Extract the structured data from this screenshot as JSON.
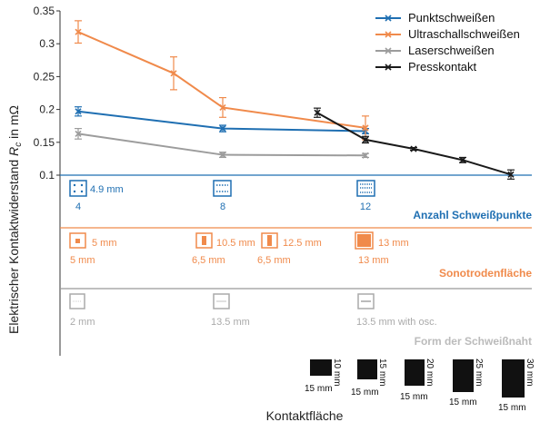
{
  "chart_data": {
    "type": "line",
    "title": "",
    "ylabel_prefix": "Elektrischer Kontaktwiderstand ",
    "ylabel_symbol": "R",
    "ylabel_subscript": "c",
    "ylabel_suffix": " in mΩ",
    "xlabel": "Kontaktfläche",
    "ylim": [
      0.1,
      0.35
    ],
    "yticks": [
      "0.35",
      "0.3",
      "0.25",
      "0.2",
      "0.15",
      "0.1"
    ],
    "grid": false,
    "legend_position": "top-right",
    "series": [
      {
        "name": "Punktschweißen",
        "color": "#1f6fb2",
        "points": [
          {
            "x": 1,
            "y": 0.197,
            "err": 0.007
          },
          {
            "x": 3,
            "y": 0.171,
            "err": 0.005
          },
          {
            "x": 5,
            "y": 0.167,
            "err": 0.004
          }
        ]
      },
      {
        "name": "Ultraschallschweißen",
        "color": "#f08a4b",
        "points": [
          {
            "x": 1,
            "y": 0.318,
            "err": 0.017
          },
          {
            "x": 2,
            "y": 0.255,
            "err": 0.025
          },
          {
            "x": 3,
            "y": 0.203,
            "err": 0.015
          },
          {
            "x": 5,
            "y": 0.172,
            "err": 0.018
          }
        ]
      },
      {
        "name": "Laserschweißen",
        "color": "#9c9c9c",
        "points": [
          {
            "x": 1,
            "y": 0.163,
            "err": 0.008
          },
          {
            "x": 3,
            "y": 0.131,
            "err": 0.004
          },
          {
            "x": 5,
            "y": 0.13,
            "err": 0.003
          }
        ]
      },
      {
        "name": "Presskontakt",
        "color": "#1a1a1a",
        "points": [
          {
            "x": 4,
            "y": 0.195,
            "err": 0.007
          },
          {
            "x": 5,
            "y": 0.154,
            "err": 0.005
          },
          {
            "x": 6,
            "y": 0.14,
            "err": 0.002
          },
          {
            "x": 7,
            "y": 0.123,
            "err": 0.004
          },
          {
            "x": 8,
            "y": 0.101,
            "err": 0.007
          }
        ]
      }
    ]
  },
  "bands": {
    "spot": {
      "title": "Anzahl Schweißpunkte",
      "color": "#1f6fb2",
      "items": [
        {
          "top_label": "4.9 mm",
          "bottom_label": "4"
        },
        {
          "top_label": "",
          "bottom_label": "8"
        },
        {
          "top_label": "",
          "bottom_label": "12"
        }
      ]
    },
    "sonotrode": {
      "title": "Sonotrodenfläche",
      "color": "#f08a4b",
      "items": [
        {
          "right_label": "5 mm",
          "bottom_label": "5 mm"
        },
        {
          "right_label": "10.5 mm",
          "bottom_label": "6,5 mm"
        },
        {
          "right_label": "12.5 mm",
          "bottom_label": "6,5 mm"
        },
        {
          "right_label": "13 mm",
          "bottom_label": "13 mm"
        }
      ]
    },
    "seam": {
      "title": "Form der Schweißnaht",
      "color": "#aaaaaa",
      "items": [
        {
          "bottom_label": "2 mm"
        },
        {
          "bottom_label": "13.5 mm"
        },
        {
          "bottom_label": "13.5 mm with osc."
        }
      ]
    },
    "press": {
      "items": [
        {
          "width_label": "15 mm",
          "height_label": "10 mm"
        },
        {
          "width_label": "15 mm",
          "height_label": "15 mm"
        },
        {
          "width_label": "15 mm",
          "height_label": "20 mm"
        },
        {
          "width_label": "15 mm",
          "height_label": "25 mm"
        },
        {
          "width_label": "15 mm",
          "height_label": "30 mm"
        }
      ]
    }
  }
}
